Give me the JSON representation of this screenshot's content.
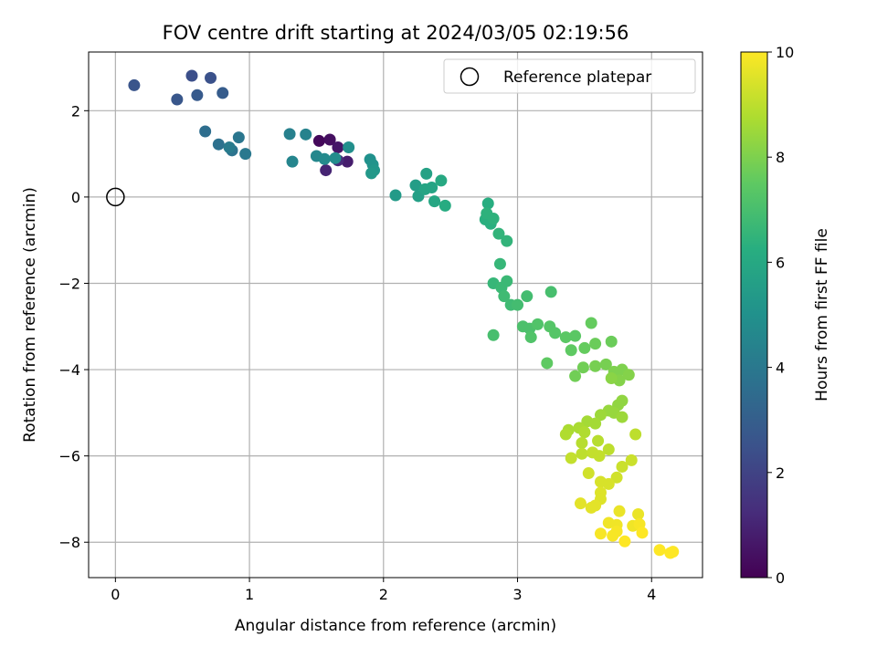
{
  "chart_data": {
    "type": "scatter",
    "title": "FOV centre drift starting at 2024/03/05 02:19:56",
    "xlabel": "Angular distance from reference (arcmin)",
    "ylabel": "Rotation from reference (arcmin)",
    "xlim": [
      -0.2,
      4.38
    ],
    "ylim": [
      -8.82,
      3.36
    ],
    "xticks": [
      0,
      1,
      2,
      3,
      4
    ],
    "yticks": [
      -8,
      -6,
      -4,
      -2,
      0,
      2
    ],
    "grid": true,
    "legend": {
      "position": "top-right",
      "label": "Reference platepar"
    },
    "reference_point": [
      0,
      0
    ],
    "colorbar": {
      "label": "Hours from first FF file",
      "colormap": "viridis",
      "range": [
        0,
        10
      ],
      "ticks": [
        0,
        2,
        4,
        6,
        8,
        10
      ]
    },
    "points": [
      [
        1.52,
        1.3,
        0.2
      ],
      [
        1.6,
        1.33,
        0.4
      ],
      [
        1.66,
        1.15,
        0.6
      ],
      [
        1.73,
        0.82,
        0.8
      ],
      [
        1.57,
        0.62,
        1.0
      ],
      [
        1.66,
        0.85,
        1.2
      ],
      [
        0.14,
        2.59,
        2.6
      ],
      [
        0.57,
        2.81,
        2.4
      ],
      [
        0.71,
        2.76,
        2.5
      ],
      [
        0.46,
        2.26,
        2.7
      ],
      [
        0.61,
        2.36,
        2.8
      ],
      [
        0.8,
        2.41,
        2.9
      ],
      [
        0.67,
        1.52,
        3.6
      ],
      [
        0.77,
        1.22,
        3.7
      ],
      [
        0.87,
        1.08,
        3.8
      ],
      [
        0.92,
        1.38,
        3.9
      ],
      [
        0.97,
        1.0,
        4.0
      ],
      [
        0.85,
        1.15,
        4.1
      ],
      [
        1.3,
        1.46,
        4.3
      ],
      [
        1.42,
        1.45,
        4.4
      ],
      [
        1.32,
        0.82,
        4.5
      ],
      [
        1.5,
        0.95,
        4.6
      ],
      [
        1.56,
        0.88,
        4.7
      ],
      [
        1.64,
        0.9,
        4.8
      ],
      [
        1.74,
        1.15,
        4.9
      ],
      [
        1.9,
        0.87,
        5.0
      ],
      [
        1.92,
        0.75,
        5.1
      ],
      [
        1.93,
        0.62,
        5.2
      ],
      [
        1.91,
        0.55,
        5.3
      ],
      [
        2.09,
        0.04,
        5.4
      ],
      [
        2.24,
        0.27,
        5.5
      ],
      [
        2.26,
        0.02,
        5.6
      ],
      [
        2.32,
        0.54,
        5.7
      ],
      [
        2.36,
        0.22,
        5.8
      ],
      [
        2.31,
        0.18,
        5.8
      ],
      [
        2.38,
        -0.1,
        5.9
      ],
      [
        2.43,
        0.38,
        6.0
      ],
      [
        2.46,
        -0.2,
        6.1
      ],
      [
        2.78,
        -0.15,
        6.2
      ],
      [
        2.76,
        -0.52,
        6.3
      ],
      [
        2.8,
        -0.62,
        6.3
      ],
      [
        2.77,
        -0.38,
        6.4
      ],
      [
        2.82,
        -0.5,
        6.4
      ],
      [
        2.86,
        -0.85,
        6.5
      ],
      [
        2.92,
        -1.02,
        6.5
      ],
      [
        2.87,
        -1.55,
        6.6
      ],
      [
        2.82,
        -2.0,
        6.6
      ],
      [
        2.88,
        -2.1,
        6.7
      ],
      [
        2.92,
        -1.95,
        6.7
      ],
      [
        2.9,
        -2.3,
        6.8
      ],
      [
        2.95,
        -2.5,
        6.8
      ],
      [
        3.0,
        -2.5,
        6.9
      ],
      [
        3.07,
        -2.3,
        6.9
      ],
      [
        2.82,
        -3.2,
        7.0
      ],
      [
        3.25,
        -2.2,
        7.0
      ],
      [
        3.04,
        -3.0,
        7.1
      ],
      [
        3.09,
        -3.05,
        7.1
      ],
      [
        3.1,
        -3.25,
        7.2
      ],
      [
        3.15,
        -2.95,
        7.2
      ],
      [
        3.24,
        -3.0,
        7.3
      ],
      [
        3.28,
        -3.15,
        7.3
      ],
      [
        3.36,
        -3.25,
        7.4
      ],
      [
        3.43,
        -3.22,
        7.4
      ],
      [
        3.22,
        -3.85,
        7.5
      ],
      [
        3.4,
        -3.55,
        7.5
      ],
      [
        3.5,
        -3.5,
        7.6
      ],
      [
        3.55,
        -2.92,
        7.6
      ],
      [
        3.58,
        -3.4,
        7.7
      ],
      [
        3.7,
        -3.35,
        7.7
      ],
      [
        3.43,
        -4.15,
        7.8
      ],
      [
        3.49,
        -3.95,
        7.8
      ],
      [
        3.58,
        -3.92,
        7.9
      ],
      [
        3.66,
        -3.88,
        7.9
      ],
      [
        3.72,
        -4.05,
        8.0
      ],
      [
        3.78,
        -4.0,
        8.0
      ],
      [
        3.76,
        -4.25,
        8.1
      ],
      [
        3.83,
        -4.12,
        8.1
      ],
      [
        3.7,
        -4.2,
        8.2
      ],
      [
        3.78,
        -4.72,
        8.3
      ],
      [
        3.75,
        -4.82,
        8.3
      ],
      [
        3.68,
        -4.95,
        8.4
      ],
      [
        3.72,
        -5.0,
        8.4
      ],
      [
        3.62,
        -5.05,
        8.5
      ],
      [
        3.78,
        -5.1,
        8.5
      ],
      [
        3.52,
        -5.2,
        8.6
      ],
      [
        3.58,
        -5.25,
        8.6
      ],
      [
        3.46,
        -5.35,
        8.7
      ],
      [
        3.38,
        -5.4,
        8.7
      ],
      [
        3.5,
        -5.45,
        8.8
      ],
      [
        3.36,
        -5.5,
        8.8
      ],
      [
        3.48,
        -5.7,
        8.9
      ],
      [
        3.6,
        -5.65,
        8.9
      ],
      [
        3.68,
        -5.85,
        9.0
      ],
      [
        3.88,
        -5.5,
        9.0
      ],
      [
        3.48,
        -5.95,
        9.0
      ],
      [
        3.4,
        -6.05,
        9.1
      ],
      [
        3.61,
        -6.0,
        9.1
      ],
      [
        3.56,
        -5.92,
        9.1
      ],
      [
        3.78,
        -6.25,
        9.2
      ],
      [
        3.85,
        -6.1,
        9.2
      ],
      [
        3.53,
        -6.4,
        9.3
      ],
      [
        3.74,
        -6.5,
        9.3
      ],
      [
        3.62,
        -6.6,
        9.4
      ],
      [
        3.68,
        -6.65,
        9.4
      ],
      [
        3.62,
        -6.85,
        9.5
      ],
      [
        3.62,
        -7.0,
        9.5
      ],
      [
        3.47,
        -7.1,
        9.6
      ],
      [
        3.58,
        -7.15,
        9.6
      ],
      [
        3.55,
        -7.2,
        9.6
      ],
      [
        3.76,
        -7.28,
        9.7
      ],
      [
        3.9,
        -7.35,
        9.7
      ],
      [
        3.68,
        -7.55,
        9.8
      ],
      [
        3.74,
        -7.6,
        9.8
      ],
      [
        3.86,
        -7.62,
        9.8
      ],
      [
        3.91,
        -7.58,
        9.9
      ],
      [
        3.74,
        -7.75,
        9.9
      ],
      [
        3.62,
        -7.8,
        9.9
      ],
      [
        3.71,
        -7.85,
        9.9
      ],
      [
        3.8,
        -7.98,
        10.0
      ],
      [
        3.93,
        -7.78,
        10.0
      ],
      [
        4.06,
        -8.18,
        10.0
      ],
      [
        4.14,
        -8.25,
        10.0
      ],
      [
        4.16,
        -8.22,
        10.0
      ]
    ]
  }
}
